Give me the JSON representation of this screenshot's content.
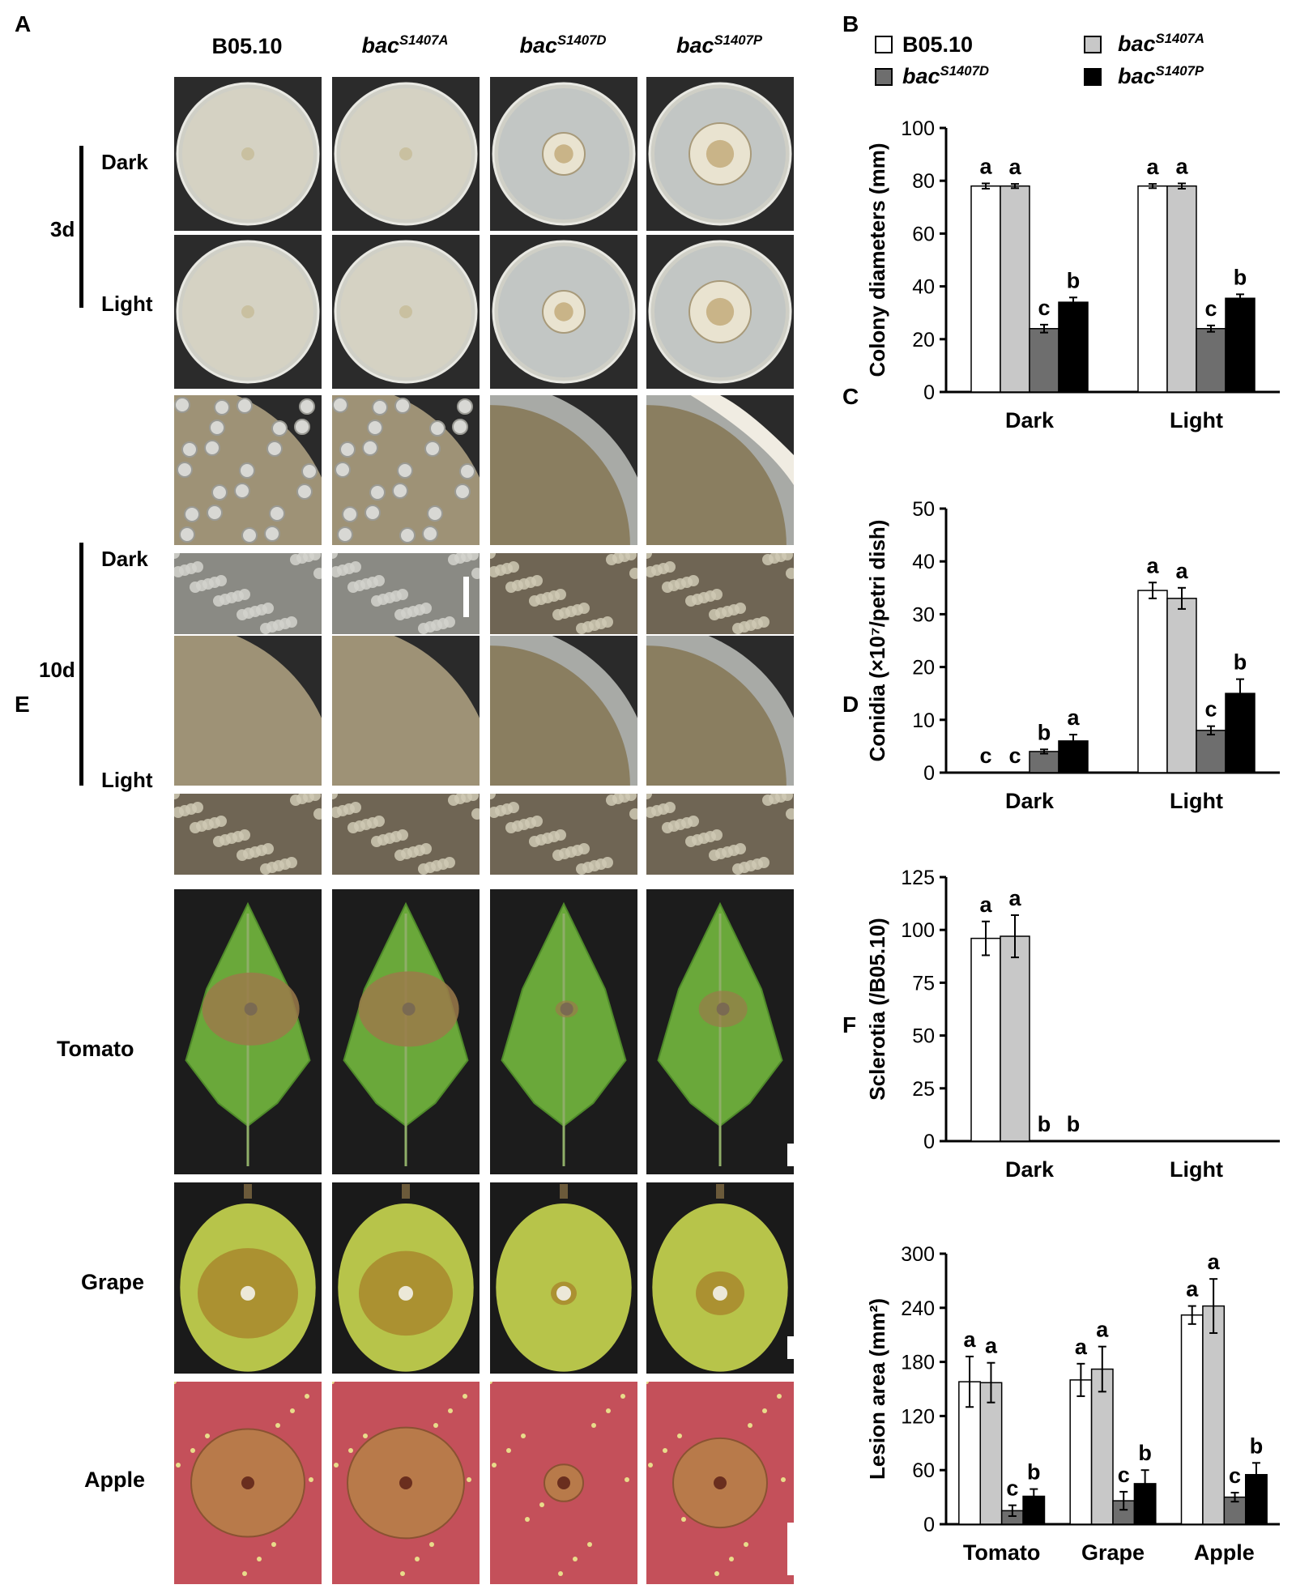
{
  "panels": {
    "A": "A",
    "B": "B",
    "C": "C",
    "D": "D",
    "E": "E",
    "F": "F"
  },
  "strains": [
    {
      "base": "B05.10",
      "sup": ""
    },
    {
      "base": "bac",
      "sup": "S1407A"
    },
    {
      "base": "bac",
      "sup": "S1407D"
    },
    {
      "base": "bac",
      "sup": "S1407P"
    }
  ],
  "row_labels": {
    "day3": "3d",
    "day10": "10d",
    "dark": "Dark",
    "light": "Light"
  },
  "hosts": [
    "Tomato",
    "Grape",
    "Apple"
  ],
  "colors": {
    "wt": "#ffffff",
    "A": "#c8c8c8",
    "D": "#6e6e6e",
    "P": "#000000"
  },
  "legend": {
    "items": [
      {
        "base": "B05.10",
        "sup": "",
        "color": "#ffffff"
      },
      {
        "base": "bac",
        "sup": "S1407A",
        "color": "#c8c8c8"
      },
      {
        "base": "bac",
        "sup": "S1407D",
        "color": "#6e6e6e"
      },
      {
        "base": "bac",
        "sup": "S1407P",
        "color": "#000000"
      }
    ]
  },
  "chart_data": [
    {
      "type": "bar",
      "id": "B",
      "ylabel": "Colony diameters (mm)",
      "ylim": [
        0,
        100
      ],
      "yticks": [
        0,
        20,
        40,
        60,
        80,
        100
      ],
      "categories": [
        "Dark",
        "Light"
      ],
      "series": [
        {
          "values": [
            78,
            78
          ],
          "err": [
            1,
            0.8
          ],
          "letters": [
            "a",
            "a"
          ]
        },
        {
          "values": [
            78,
            78
          ],
          "err": [
            0.8,
            1
          ],
          "letters": [
            "a",
            "a"
          ]
        },
        {
          "values": [
            24,
            24
          ],
          "err": [
            1.5,
            1.2
          ],
          "letters": [
            "c",
            "c"
          ]
        },
        {
          "values": [
            34,
            35.5
          ],
          "err": [
            1.8,
            1.5
          ],
          "letters": [
            "b",
            "b"
          ]
        }
      ]
    },
    {
      "type": "bar",
      "id": "C",
      "ylabel": "Conidia (×10⁷/petri dish)",
      "ylim": [
        0,
        50
      ],
      "yticks": [
        0,
        10,
        20,
        30,
        40,
        50
      ],
      "categories": [
        "Dark",
        "Light"
      ],
      "series": [
        {
          "values": [
            0,
            34.5
          ],
          "err": [
            0,
            1.5
          ],
          "letters": [
            "c",
            "a"
          ]
        },
        {
          "values": [
            0,
            33
          ],
          "err": [
            0,
            2
          ],
          "letters": [
            "c",
            "a"
          ]
        },
        {
          "values": [
            4,
            8
          ],
          "err": [
            0.4,
            0.8
          ],
          "letters": [
            "b",
            "c"
          ]
        },
        {
          "values": [
            6,
            15
          ],
          "err": [
            1.2,
            2.7
          ],
          "letters": [
            "a",
            "b"
          ]
        }
      ]
    },
    {
      "type": "bar",
      "id": "D",
      "ylabel": "Sclerotia (/B05.10)",
      "ylim": [
        0,
        125
      ],
      "yticks": [
        0,
        25,
        50,
        75,
        100,
        125
      ],
      "categories": [
        "Dark",
        "Light"
      ],
      "series": [
        {
          "values": [
            96,
            0
          ],
          "err": [
            8,
            0
          ],
          "letters": [
            "a",
            ""
          ]
        },
        {
          "values": [
            97,
            0
          ],
          "err": [
            10,
            0
          ],
          "letters": [
            "a",
            ""
          ]
        },
        {
          "values": [
            0,
            0
          ],
          "err": [
            0,
            0
          ],
          "letters": [
            "b",
            ""
          ]
        },
        {
          "values": [
            0,
            0
          ],
          "err": [
            0,
            0
          ],
          "letters": [
            "b",
            ""
          ]
        }
      ]
    },
    {
      "type": "bar",
      "id": "F",
      "ylabel": "Lesion area (mm²)",
      "ylim": [
        0,
        300
      ],
      "yticks": [
        0,
        60,
        120,
        180,
        240,
        300
      ],
      "categories": [
        "Tomato",
        "Grape",
        "Apple"
      ],
      "series": [
        {
          "values": [
            158,
            160,
            232
          ],
          "err": [
            28,
            18,
            10
          ],
          "letters": [
            "a",
            "a",
            "a"
          ]
        },
        {
          "values": [
            157,
            172,
            242
          ],
          "err": [
            22,
            25,
            30
          ],
          "letters": [
            "a",
            "a",
            "a"
          ]
        },
        {
          "values": [
            15,
            26,
            30
          ],
          "err": [
            6,
            10,
            5
          ],
          "letters": [
            "c",
            "c",
            "c"
          ]
        },
        {
          "values": [
            31,
            45,
            55
          ],
          "err": [
            8,
            15,
            13
          ],
          "letters": [
            "b",
            "b",
            "b"
          ]
        }
      ]
    }
  ]
}
